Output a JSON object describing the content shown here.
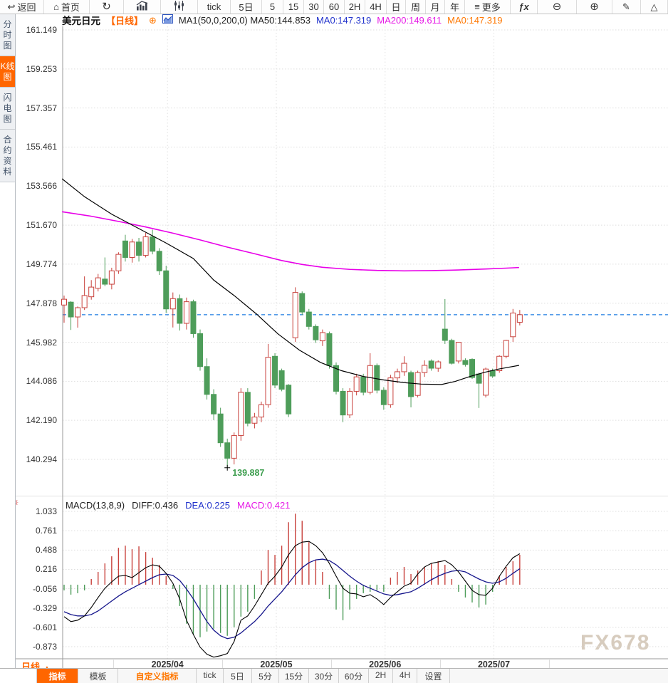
{
  "toolbar": {
    "items": [
      {
        "name": "back",
        "icon": "back-arrow",
        "label": "返回",
        "width": 62
      },
      {
        "name": "home",
        "icon": "home",
        "label": "首页",
        "width": 64
      },
      {
        "name": "refresh",
        "icon": "refresh",
        "label": "",
        "width": 48
      },
      {
        "name": "bar-chart-mode",
        "icon": "bar-chart",
        "label": "",
        "width": 52
      },
      {
        "name": "candlestick-mode",
        "icon": "candlestick",
        "label": "",
        "width": 52
      },
      {
        "name": "tick",
        "icon": null,
        "label": "tick",
        "width": 46
      },
      {
        "name": "5day",
        "icon": null,
        "label": "5日",
        "width": 44
      },
      {
        "name": "5min",
        "icon": null,
        "label": "5",
        "width": 30
      },
      {
        "name": "15min",
        "icon": null,
        "label": "15",
        "width": 29
      },
      {
        "name": "30min",
        "icon": null,
        "label": "30",
        "width": 28
      },
      {
        "name": "60min",
        "icon": null,
        "label": "60",
        "width": 29
      },
      {
        "name": "2hour",
        "icon": null,
        "label": "2H",
        "width": 29
      },
      {
        "name": "4hour",
        "icon": null,
        "label": "4H",
        "width": 30
      },
      {
        "name": "daily",
        "icon": null,
        "label": "日",
        "width": 27
      },
      {
        "name": "weekly",
        "icon": null,
        "label": "周",
        "width": 28
      },
      {
        "name": "monthly",
        "icon": null,
        "label": "月",
        "width": 27
      },
      {
        "name": "yearly",
        "icon": null,
        "label": "年",
        "width": 28
      },
      {
        "name": "more",
        "icon": "menu",
        "label": "更多",
        "width": 64
      },
      {
        "name": "indicator-fx",
        "icon": "fx",
        "label": "",
        "width": 38
      },
      {
        "name": "zoom-out",
        "icon": "zoom-out",
        "label": "",
        "width": 55
      },
      {
        "name": "zoom-in",
        "icon": "zoom-in",
        "label": "",
        "width": 50
      },
      {
        "name": "draw",
        "icon": "pencil",
        "label": "",
        "width": 40
      },
      {
        "name": "shape",
        "icon": "triangle",
        "label": "",
        "width": 0
      }
    ]
  },
  "sidebar": {
    "tabs": [
      {
        "name": "time-chart",
        "label": "分时图",
        "active": false
      },
      {
        "name": "candle-chart",
        "label": "K线图",
        "active": true
      },
      {
        "name": "flash-chart",
        "label": "闪电图",
        "active": false
      },
      {
        "name": "contract-info",
        "label": "合约资料",
        "active": false
      }
    ]
  },
  "price_header": {
    "symbol": "美元日元",
    "period_tag": "【日线】",
    "add_icon": "⊕",
    "ma_def": "MA1(50,0,200,0) MA50:144.853",
    "ma0_blue": "MA0:147.319",
    "ma200": "MA200:149.611",
    "ma0_orange": "MA0:147.319"
  },
  "macd_header": {
    "settings_icon": "☼",
    "title": "MACD(13,8,9)",
    "diff": "DIFF:0.436",
    "dea": "DEA:0.225",
    "macd": "MACD:0.421"
  },
  "bottom_left": {
    "label": "日线",
    "arrow": "▲"
  },
  "bottom_bar": {
    "cells": [
      {
        "label": "指标",
        "width": 58,
        "style": "active"
      },
      {
        "label": "模板",
        "width": 56,
        "style": ""
      },
      {
        "label": "自定义指标",
        "width": 110,
        "style": "orange"
      },
      {
        "label": "tick",
        "width": 38,
        "style": ""
      },
      {
        "label": "5日",
        "width": 40,
        "style": ""
      },
      {
        "label": "5分",
        "width": 38,
        "style": ""
      },
      {
        "label": "15分",
        "width": 42,
        "style": ""
      },
      {
        "label": "30分",
        "width": 42,
        "style": ""
      },
      {
        "label": "60分",
        "width": 42,
        "style": ""
      },
      {
        "label": "2H",
        "width": 34,
        "style": ""
      },
      {
        "label": "4H",
        "width": 34,
        "style": ""
      },
      {
        "label": "设置",
        "width": 46,
        "style": ""
      }
    ]
  },
  "watermark": "FX678",
  "colors": {
    "up": "#c8413c",
    "down": "#4e9d5a",
    "ma50": "#000000",
    "ma200": "#e800e8",
    "dea_line": "#16168c",
    "diff_line": "#000000",
    "last_price_line": "#1e7be0",
    "accent": "#ff6600",
    "low_label": "#3e9e4f",
    "grid": "#dedede",
    "axis": "#9a9a9a"
  },
  "chart_data": [
    {
      "type": "candlestick",
      "title": "美元日元 日线 (USD/JPY daily)",
      "y_ticks": [
        161.149,
        159.253,
        157.357,
        155.461,
        153.566,
        151.67,
        149.774,
        147.878,
        145.982,
        144.086,
        142.19,
        140.294
      ],
      "x_tick_labels": [
        "2025/04",
        "2025/05",
        "2025/06",
        "2025/07"
      ],
      "x_tick_index": [
        15.2,
        31.2,
        47.2,
        63.2
      ],
      "last_price": 147.319,
      "low_annotation": 139.887,
      "candles": [
        [
          147.79,
          148.25,
          146.93,
          148.07
        ],
        [
          147.93,
          147.97,
          146.58,
          147.21
        ],
        [
          147.21,
          147.72,
          146.69,
          147.66
        ],
        [
          147.66,
          149.18,
          147.55,
          148.25
        ],
        [
          148.19,
          149.0,
          148.05,
          148.66
        ],
        [
          148.6,
          149.3,
          148.45,
          149.11
        ],
        [
          149.05,
          150.1,
          148.7,
          148.8
        ],
        [
          148.8,
          149.6,
          148.55,
          149.45
        ],
        [
          149.45,
          150.35,
          149.3,
          150.25
        ],
        [
          150.9,
          151.2,
          149.9,
          150.1
        ],
        [
          150.1,
          151.0,
          149.85,
          150.85
        ],
        [
          150.85,
          151.05,
          149.9,
          150.2
        ],
        [
          150.2,
          151.3,
          150.1,
          151.1
        ],
        [
          151.1,
          151.45,
          150.25,
          150.4
        ],
        [
          150.4,
          150.55,
          149.25,
          149.45
        ],
        [
          149.45,
          149.7,
          147.4,
          147.6
        ],
        [
          147.6,
          148.4,
          146.7,
          148.1
        ],
        [
          148.1,
          148.3,
          146.55,
          146.9
        ],
        [
          146.9,
          148.15,
          146.6,
          147.95
        ],
        [
          147.95,
          148.05,
          146.2,
          146.4
        ],
        [
          146.4,
          146.6,
          144.6,
          144.8
        ],
        [
          144.8,
          145.2,
          143.2,
          143.45
        ],
        [
          143.45,
          143.7,
          142.2,
          142.5
        ],
        [
          142.5,
          142.8,
          140.9,
          141.1
        ],
        [
          141.1,
          141.3,
          139.887,
          140.35
        ],
        [
          140.35,
          141.6,
          140.05,
          141.45
        ],
        [
          141.45,
          143.75,
          141.2,
          143.55
        ],
        [
          143.55,
          143.75,
          141.9,
          142.05
        ],
        [
          142.05,
          142.55,
          141.8,
          142.35
        ],
        [
          142.35,
          143.1,
          142.1,
          142.95
        ],
        [
          142.95,
          145.9,
          142.8,
          145.25
        ],
        [
          145.3,
          145.45,
          143.75,
          143.9
        ],
        [
          144.6,
          144.7,
          143.6,
          143.7
        ],
        [
          143.9,
          143.95,
          142.35,
          142.5
        ],
        [
          146.2,
          148.65,
          146.0,
          148.4
        ],
        [
          148.35,
          148.45,
          147.3,
          147.45
        ],
        [
          147.45,
          147.6,
          146.6,
          146.75
        ],
        [
          146.75,
          146.85,
          145.95,
          146.1
        ],
        [
          146.05,
          146.6,
          145.8,
          146.45
        ],
        [
          146.4,
          146.5,
          144.7,
          144.85
        ],
        [
          144.85,
          145.0,
          143.45,
          143.6
        ],
        [
          143.6,
          143.75,
          142.1,
          142.45
        ],
        [
          142.45,
          143.75,
          142.3,
          143.6
        ],
        [
          143.6,
          144.45,
          143.4,
          144.3
        ],
        [
          144.3,
          144.45,
          143.4,
          143.55
        ],
        [
          143.55,
          145.45,
          143.45,
          144.85
        ],
        [
          144.85,
          144.95,
          143.5,
          143.65
        ],
        [
          143.65,
          143.8,
          142.7,
          142.95
        ],
        [
          142.95,
          144.4,
          142.8,
          144.25
        ],
        [
          144.25,
          144.7,
          144.0,
          144.55
        ],
        [
          144.55,
          145.3,
          144.35,
          144.96
        ],
        [
          144.51,
          144.6,
          142.82,
          143.34
        ],
        [
          143.4,
          144.6,
          143.3,
          144.51
        ],
        [
          144.51,
          145.1,
          144.3,
          144.86
        ],
        [
          145.07,
          145.15,
          144.6,
          144.72
        ],
        [
          144.72,
          145.1,
          144.55,
          145.03
        ],
        [
          146.62,
          148.08,
          145.9,
          146.07
        ],
        [
          146.07,
          146.15,
          144.9,
          144.96
        ],
        [
          145.07,
          146.0,
          144.95,
          145.98
        ],
        [
          145.1,
          145.2,
          144.8,
          144.9
        ],
        [
          145.15,
          145.2,
          144.2,
          144.27
        ],
        [
          144.44,
          144.5,
          142.79,
          143.99
        ],
        [
          143.41,
          144.75,
          143.3,
          144.68
        ],
        [
          144.6,
          144.7,
          144.25,
          144.34
        ],
        [
          144.6,
          145.35,
          144.5,
          145.3
        ],
        [
          145.3,
          146.1,
          145.2,
          146.07
        ],
        [
          146.25,
          147.6,
          146.0,
          147.4
        ],
        [
          146.95,
          147.55,
          146.8,
          147.32
        ]
      ],
      "ma50_points": [
        [
          -0.3,
          153.92
        ],
        [
          3,
          153.05
        ],
        [
          7,
          152.2
        ],
        [
          11,
          151.5
        ],
        [
          15,
          150.8
        ],
        [
          19,
          150.05
        ],
        [
          22,
          149.0
        ],
        [
          25,
          148.25
        ],
        [
          28.3,
          147.35
        ],
        [
          31.4,
          146.4
        ],
        [
          34.6,
          145.6
        ],
        [
          37.7,
          145.0
        ],
        [
          40.8,
          144.6
        ],
        [
          44,
          144.32
        ],
        [
          47,
          144.15
        ],
        [
          50,
          144.02
        ],
        [
          52.5,
          143.95
        ],
        [
          55.5,
          143.93
        ],
        [
          57.5,
          144.08
        ],
        [
          59.7,
          144.32
        ],
        [
          61.8,
          144.52
        ],
        [
          63.9,
          144.68
        ],
        [
          66.9,
          144.86
        ]
      ],
      "ma200_points": [
        [
          -0.3,
          152.32
        ],
        [
          4,
          152.1
        ],
        [
          8,
          151.85
        ],
        [
          12,
          151.58
        ],
        [
          16,
          151.28
        ],
        [
          20,
          150.95
        ],
        [
          24,
          150.6
        ],
        [
          28,
          150.28
        ],
        [
          32,
          149.95
        ],
        [
          35,
          149.76
        ],
        [
          38,
          149.62
        ],
        [
          42,
          149.52
        ],
        [
          46,
          149.47
        ],
        [
          50,
          149.45
        ],
        [
          54,
          149.46
        ],
        [
          58,
          149.49
        ],
        [
          62,
          149.54
        ],
        [
          65,
          149.58
        ],
        [
          66.9,
          149.61
        ]
      ]
    },
    {
      "type": "macd",
      "params": "(13,8,9)",
      "y_ticks": [
        1.033,
        0.761,
        0.488,
        0.216,
        -0.056,
        -0.329,
        -0.601,
        -0.873
      ],
      "diff_last": 0.436,
      "dea_last": 0.225,
      "macd_last": 0.421,
      "diff": [
        -0.45,
        -0.52,
        -0.5,
        -0.44,
        -0.32,
        -0.18,
        -0.05,
        0.04,
        0.12,
        0.13,
        0.1,
        0.17,
        0.24,
        0.28,
        0.26,
        0.16,
        0.02,
        -0.2,
        -0.5,
        -0.7,
        -0.88,
        -0.98,
        -1.02,
        -1.0,
        -0.97,
        -0.8,
        -0.5,
        -0.44,
        -0.3,
        -0.14,
        0.02,
        0.12,
        0.25,
        0.42,
        0.55,
        0.6,
        0.61,
        0.55,
        0.45,
        0.3,
        0.12,
        -0.05,
        -0.12,
        -0.13,
        -0.17,
        -0.14,
        -0.2,
        -0.28,
        -0.18,
        -0.1,
        -0.02,
        0.02,
        0.15,
        0.25,
        0.3,
        0.32,
        0.34,
        0.28,
        0.18,
        0.05,
        -0.08,
        -0.14,
        -0.15,
        -0.05,
        0.12,
        0.26,
        0.38,
        0.436
      ],
      "dea": [
        -0.38,
        -0.42,
        -0.44,
        -0.44,
        -0.42,
        -0.37,
        -0.3,
        -0.23,
        -0.16,
        -0.1,
        -0.05,
        0.0,
        0.05,
        0.1,
        0.14,
        0.15,
        0.13,
        0.06,
        -0.06,
        -0.2,
        -0.36,
        -0.52,
        -0.64,
        -0.72,
        -0.76,
        -0.74,
        -0.68,
        -0.6,
        -0.52,
        -0.42,
        -0.3,
        -0.2,
        -0.1,
        0.02,
        0.14,
        0.24,
        0.31,
        0.35,
        0.36,
        0.34,
        0.28,
        0.2,
        0.12,
        0.05,
        -0.01,
        -0.05,
        -0.09,
        -0.13,
        -0.15,
        -0.14,
        -0.12,
        -0.1,
        -0.05,
        0.01,
        0.07,
        0.12,
        0.16,
        0.19,
        0.2,
        0.18,
        0.13,
        0.08,
        0.04,
        0.02,
        0.04,
        0.09,
        0.16,
        0.225
      ],
      "hist": [
        -0.08,
        -0.14,
        -0.12,
        -0.08,
        0.08,
        0.18,
        0.3,
        0.4,
        0.52,
        0.55,
        0.5,
        0.54,
        0.46,
        0.38,
        0.28,
        0.12,
        -0.06,
        -0.3,
        -0.55,
        -0.7,
        -0.74,
        -0.66,
        -0.62,
        -0.68,
        -0.72,
        -0.6,
        -0.45,
        -0.38,
        -0.2,
        0.2,
        0.49,
        0.42,
        0.55,
        0.88,
        1.0,
        0.9,
        0.6,
        0.35,
        0.18,
        -0.2,
        -0.35,
        -0.5,
        -0.35,
        -0.2,
        -0.12,
        -0.1,
        -0.08,
        -0.1,
        0.1,
        0.18,
        0.25,
        0.15,
        0.2,
        0.25,
        0.3,
        0.33,
        0.28,
        0.08,
        -0.1,
        -0.18,
        -0.25,
        -0.32,
        -0.28,
        -0.1,
        0.12,
        0.25,
        0.33,
        0.421
      ]
    }
  ]
}
